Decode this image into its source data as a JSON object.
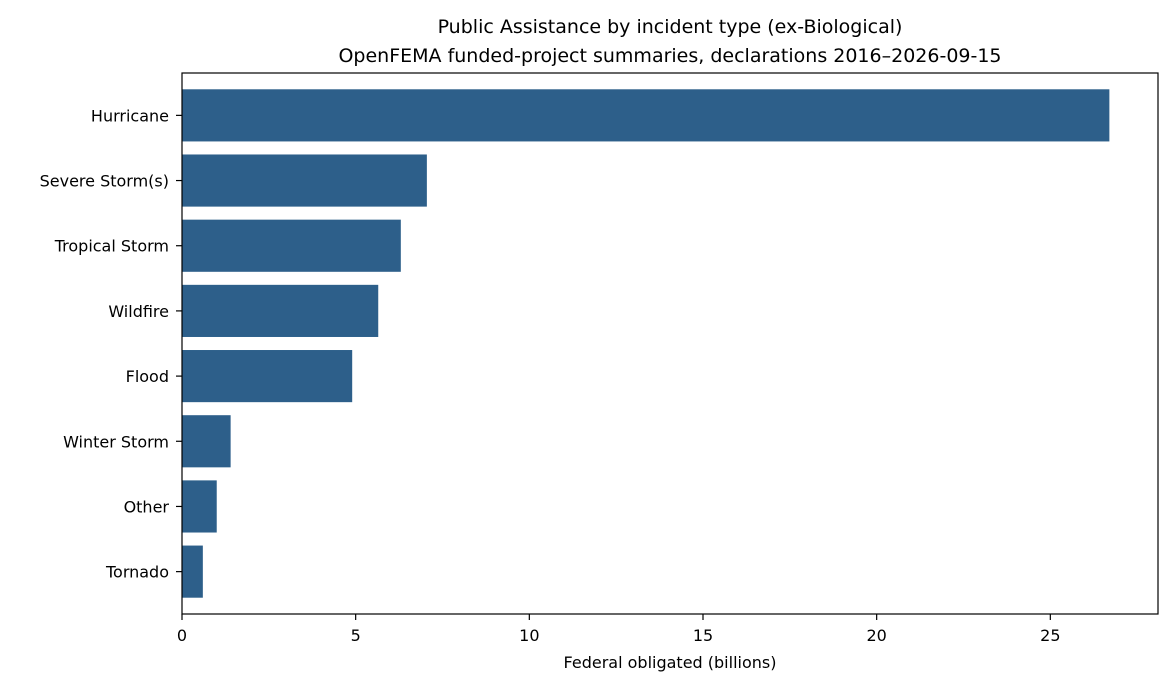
{
  "chart_data": {
    "type": "bar",
    "orientation": "horizontal",
    "title": "Public Assistance by incident type (ex-Biological)",
    "subtitle": "OpenFEMA funded-project summaries, declarations 2016–2026-09-15",
    "xlabel": "Federal obligated (billions)",
    "ylabel": "",
    "xlim": [
      0,
      28.1
    ],
    "xticks": [
      "0",
      "5",
      "10",
      "15",
      "20",
      "25"
    ],
    "grid": false,
    "legend": "none",
    "bar_color": "#2d5f8a",
    "categories": [
      "Hurricane",
      "Severe Storm(s)",
      "Tropical Storm",
      "Wildfire",
      "Flood",
      "Winter Storm",
      "Other",
      "Tornado"
    ],
    "values": [
      26.7,
      7.05,
      6.3,
      5.65,
      4.9,
      1.4,
      1.0,
      0.6
    ]
  }
}
